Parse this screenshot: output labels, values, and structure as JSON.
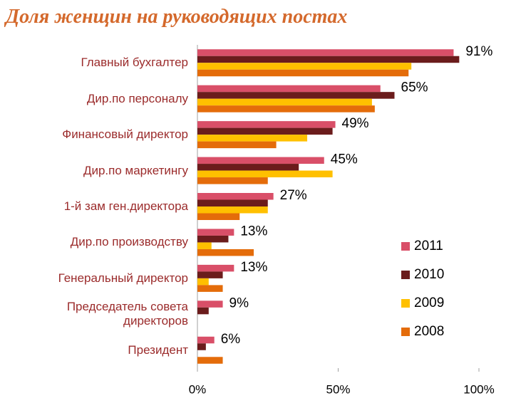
{
  "chart_data": {
    "type": "hbar",
    "title": "Доля женщин на руководящих постах",
    "categories": [
      "Главный бухгалтер",
      "Дир.по персоналу",
      "Финансовый директор",
      "Дир.по маркетингу",
      "1-й зам ген.директора",
      "Дир.по производству",
      "Генеральный директор",
      "Председатель совета директоров",
      "Президент"
    ],
    "series": [
      {
        "name": "2011",
        "color": "#d94f68",
        "values": [
          91,
          65,
          49,
          45,
          27,
          13,
          13,
          9,
          6
        ],
        "value_labels": [
          "91%",
          "65%",
          "49%",
          "45%",
          "27%",
          "13%",
          "13%",
          "9%",
          "6%"
        ]
      },
      {
        "name": "2010",
        "color": "#6b1c1c",
        "values": [
          93,
          70,
          48,
          36,
          25,
          11,
          9,
          4,
          3
        ]
      },
      {
        "name": "2009",
        "color": "#ffc000",
        "values": [
          76,
          62,
          39,
          48,
          25,
          5,
          4,
          0,
          0
        ]
      },
      {
        "name": "2008",
        "color": "#e46c0a",
        "values": [
          75,
          63,
          28,
          25,
          15,
          20,
          9,
          0,
          9
        ]
      }
    ],
    "xlim": [
      0,
      100
    ],
    "xticks": [
      {
        "value": 0,
        "label": "0%"
      },
      {
        "value": 50,
        "label": "50%"
      },
      {
        "value": 100,
        "label": "100%"
      }
    ],
    "legend": "lower right"
  }
}
